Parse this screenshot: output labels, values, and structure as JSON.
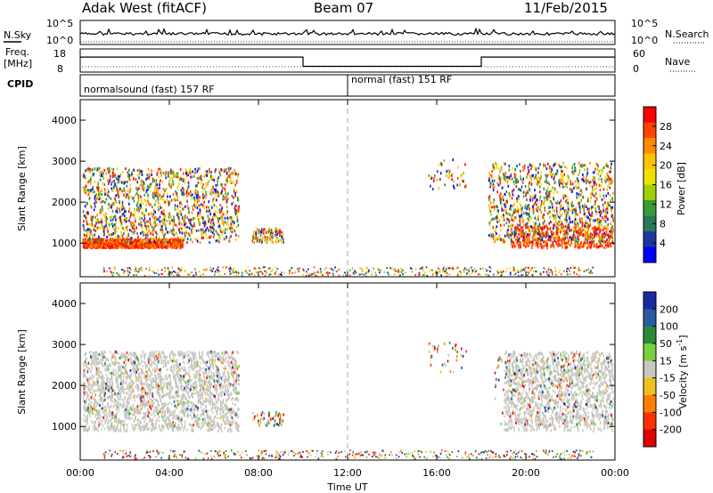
{
  "header": {
    "station": "Adak West (fitACF)",
    "beam": "Beam 07",
    "date": "11/Feb/2015"
  },
  "chart_data": [
    {
      "panel": "noise",
      "type": "line",
      "left_label": "N.Sky",
      "right_label": "N.Search",
      "left_ticks": [
        "10^5",
        "10^0"
      ],
      "right_ticks": [
        "10^5",
        "10^0"
      ]
    },
    {
      "panel": "frequency",
      "type": "line",
      "left_label": "Freq.",
      "left_unit": "[MHz]",
      "right_label": "Nave",
      "left_ticks": [
        "18",
        "8"
      ],
      "right_ticks": [
        "60",
        "0"
      ],
      "freq_steps": [
        {
          "from_hr": 0,
          "to_hr": 10,
          "mhz": 14.5
        },
        {
          "from_hr": 10,
          "to_hr": 18,
          "mhz": 10.5
        },
        {
          "from_hr": 18,
          "to_hr": 24,
          "mhz": 14.5
        }
      ]
    },
    {
      "panel": "cpid",
      "type": "table",
      "label": "CPID",
      "segments": [
        {
          "from_hr": 0,
          "to_hr": 12,
          "text": "normalsound (fast) 157 RF"
        },
        {
          "from_hr": 12,
          "to_hr": 24,
          "text": "normal (fast) 151 RF"
        }
      ]
    },
    {
      "panel": "power",
      "type": "heatmap",
      "ylabel": "Slant Range [km]",
      "yticks": [
        1000,
        2000,
        3000,
        4000
      ],
      "ylim": [
        180,
        4500
      ],
      "xlim_hr": [
        0,
        24
      ],
      "colorbar_label": "Power [dB]",
      "colorbar_ticks": [
        "28",
        "24",
        "20",
        "16",
        "12",
        "8",
        "4"
      ],
      "colorbar_colors": [
        "#ff0000",
        "#ff4400",
        "#ff8a00",
        "#ffc400",
        "#f0e000",
        "#a0d000",
        "#3a9a3a",
        "#2a7a5a",
        "#1a3aa0",
        "#0000ff"
      ]
    },
    {
      "panel": "velocity",
      "type": "heatmap",
      "ylabel": "Slant Range [km]",
      "yticks": [
        1000,
        2000,
        3000,
        4000
      ],
      "ylim": [
        180,
        4500
      ],
      "xlim_hr": [
        0,
        24
      ],
      "xlabel": "Time UT",
      "xticks": [
        "00:00",
        "04:00",
        "08:00",
        "12:00",
        "16:00",
        "20:00",
        "00:00"
      ],
      "colorbar_label": "Velocity [m s^-1]",
      "colorbar_ticks": [
        "200",
        "100",
        "50",
        "15",
        "-15",
        "-50",
        "-100",
        "-200"
      ],
      "colorbar_colors": [
        "#1a2aa0",
        "#2a5aa0",
        "#2a8a3a",
        "#7ad040",
        "#c8c8c0",
        "#f0c020",
        "#ff8000",
        "#ff3000",
        "#e00000"
      ]
    }
  ]
}
